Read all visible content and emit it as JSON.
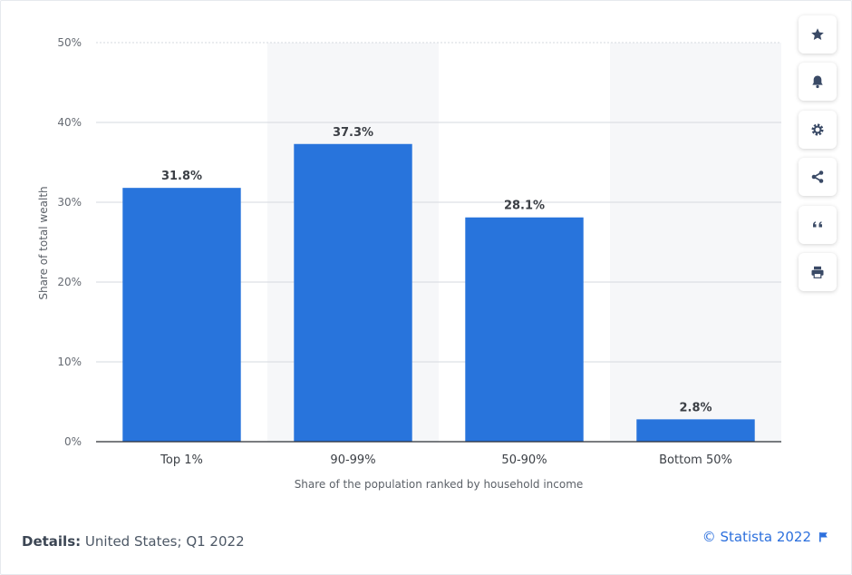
{
  "chart_data": {
    "type": "bar",
    "categories": [
      "Top 1%",
      "90-99%",
      "50-90%",
      "Bottom 50%"
    ],
    "values": [
      31.8,
      37.3,
      28.1,
      2.8
    ],
    "value_labels": [
      "31.8%",
      "37.3%",
      "28.1%",
      "2.8%"
    ],
    "ylim": [
      0,
      50
    ],
    "yticks": [
      0,
      10,
      20,
      30,
      40,
      50
    ],
    "ytick_labels": [
      "0%",
      "10%",
      "20%",
      "30%",
      "40%",
      "50%"
    ],
    "xlabel": "Share of the population ranked by household income",
    "ylabel": "Share of total wealth",
    "bar_color": "#2874dc",
    "grid": true
  },
  "sidebar": {
    "buttons": [
      {
        "name": "favorite-button",
        "icon": "star-icon"
      },
      {
        "name": "notification-button",
        "icon": "bell-icon"
      },
      {
        "name": "settings-button",
        "icon": "gear-icon"
      },
      {
        "name": "share-button",
        "icon": "share-icon"
      },
      {
        "name": "cite-button",
        "icon": "quote-icon"
      },
      {
        "name": "print-button",
        "icon": "printer-icon"
      }
    ]
  },
  "footer": {
    "details_label": "Details:",
    "details_value": "United States; Q1 2022",
    "credit": "© Statista 2022"
  },
  "colors": {
    "accent": "#2b6fdd",
    "icon": "#3a4a66"
  }
}
